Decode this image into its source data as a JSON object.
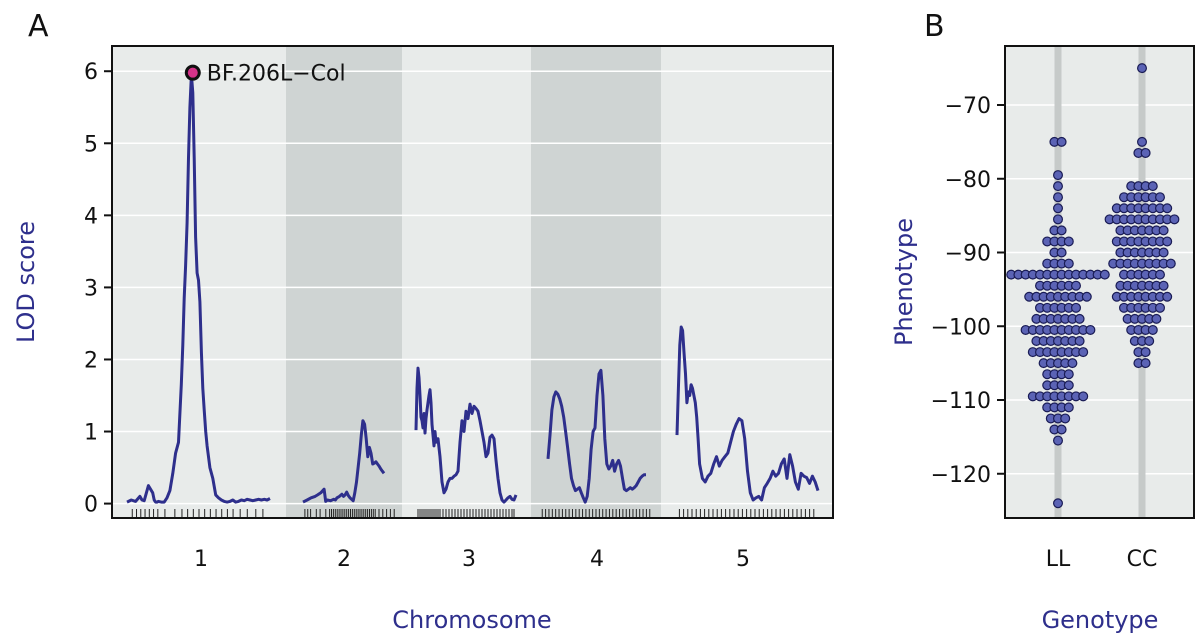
{
  "panel_labels": {
    "a": "A",
    "b": "B"
  },
  "colors": {
    "curve": "#2e2f8c",
    "point_fill": "#5b63b5",
    "point_stroke": "#1a1c55",
    "peak_fill": "#d6338a",
    "bg_light": "#e8ebea",
    "bg_dark": "#cfd4d3",
    "grid": "#ffffff",
    "title": "#2e2f8c"
  },
  "chart_data": [
    {
      "type": "line",
      "panel": "A",
      "xlabel": "Chromosome",
      "ylabel": "LOD score",
      "ylim": [
        -0.2,
        6.35
      ],
      "yticks": [
        0,
        1,
        2,
        3,
        4,
        5,
        6
      ],
      "grid": true,
      "annotation": {
        "label": "BF.206L−Col",
        "chromosome": "1",
        "lod": 5.98
      },
      "chromosomes": [
        {
          "name": "1",
          "shaded": false,
          "x": [
            0,
            3,
            6,
            9,
            10.5,
            12,
            15,
            18,
            19,
            20,
            21,
            22,
            24,
            26,
            28,
            30,
            32,
            34,
            36,
            38,
            39,
            40,
            41,
            42,
            43,
            44,
            45,
            46,
            47,
            48,
            49,
            50,
            51,
            52,
            53,
            54,
            55,
            56,
            58,
            60,
            62,
            64,
            66,
            68,
            70,
            72,
            74,
            76,
            78,
            80,
            82,
            84,
            86,
            88,
            90,
            92,
            94,
            96,
            98,
            100
          ],
          "y": [
            0.02,
            0.05,
            0.03,
            0.1,
            0.05,
            0.04,
            0.25,
            0.15,
            0.05,
            0.02,
            0.02,
            0.03,
            0.02,
            0.02,
            0.08,
            0.18,
            0.42,
            0.7,
            0.85,
            1.65,
            2.2,
            2.85,
            3.3,
            3.9,
            4.8,
            5.5,
            5.95,
            5.7,
            4.8,
            3.7,
            3.2,
            3.1,
            2.8,
            2.1,
            1.6,
            1.3,
            1.0,
            0.8,
            0.5,
            0.35,
            0.12,
            0.08,
            0.05,
            0.03,
            0.02,
            0.03,
            0.05,
            0.02,
            0.03,
            0.05,
            0.04,
            0.06,
            0.05,
            0.04,
            0.05,
            0.06,
            0.05,
            0.06,
            0.05,
            0.07
          ]
        },
        {
          "name": "2",
          "shaded": true,
          "x": [
            0,
            5,
            10,
            15,
            18,
            22,
            26,
            28,
            30,
            34,
            38,
            40,
            42,
            45,
            48,
            50,
            52,
            54,
            56,
            58,
            60,
            62,
            64,
            66,
            68,
            70,
            72,
            74,
            76,
            78,
            80,
            82,
            84,
            86,
            88,
            90,
            92,
            94,
            96,
            98,
            100
          ],
          "y": [
            0.02,
            0.05,
            0.08,
            0.1,
            0.12,
            0.15,
            0.2,
            0.03,
            0.05,
            0.04,
            0.06,
            0.05,
            0.08,
            0.1,
            0.13,
            0.1,
            0.12,
            0.16,
            0.11,
            0.08,
            0.06,
            0.04,
            0.15,
            0.3,
            0.5,
            0.7,
            0.95,
            1.15,
            1.1,
            0.9,
            0.65,
            0.78,
            0.7,
            0.55,
            0.56,
            0.58,
            0.55,
            0.52,
            0.48,
            0.45,
            0.42
          ]
        },
        {
          "name": "3",
          "shaded": false,
          "x": [
            0,
            1,
            2,
            3,
            4,
            5,
            6,
            7,
            8,
            9,
            10,
            11,
            12,
            13,
            14,
            15,
            16,
            17,
            18,
            19,
            20,
            22,
            24,
            26,
            28,
            30,
            32,
            34,
            36,
            38,
            40,
            42,
            44,
            46,
            48,
            50,
            52,
            54,
            56,
            58,
            60,
            62,
            64,
            66,
            68,
            70,
            72,
            74,
            76,
            78,
            80,
            82,
            84,
            86,
            88,
            90,
            92,
            94,
            96,
            98,
            100
          ],
          "y": [
            1.02,
            1.6,
            1.88,
            1.75,
            1.5,
            1.2,
            1.15,
            1.05,
            1.25,
            0.98,
            1.18,
            1.3,
            1.4,
            1.5,
            1.58,
            1.4,
            1.1,
            0.95,
            0.8,
            1.0,
            0.85,
            0.9,
            0.65,
            0.3,
            0.15,
            0.2,
            0.3,
            0.35,
            0.35,
            0.38,
            0.4,
            0.45,
            0.85,
            1.15,
            1.0,
            1.28,
            1.18,
            1.38,
            1.25,
            1.35,
            1.32,
            1.28,
            1.15,
            1.0,
            0.85,
            0.65,
            0.7,
            0.92,
            0.95,
            0.9,
            0.6,
            0.35,
            0.15,
            0.05,
            0.02,
            0.05,
            0.08,
            0.1,
            0.06,
            0.05,
            0.12
          ]
        },
        {
          "name": "4",
          "shaded": true,
          "x": [
            0,
            2,
            4,
            6,
            8,
            10,
            12,
            14,
            16,
            18,
            20,
            22,
            24,
            26,
            28,
            30,
            32,
            34,
            36,
            38,
            40,
            42,
            44,
            46,
            48,
            50,
            52,
            54,
            56,
            58,
            60,
            62,
            64,
            66,
            68,
            70,
            72,
            74,
            76,
            78,
            80,
            82,
            84,
            86,
            88,
            90,
            92,
            94,
            96,
            98,
            100
          ],
          "y": [
            0.62,
            0.95,
            1.3,
            1.48,
            1.55,
            1.52,
            1.45,
            1.35,
            1.2,
            1.0,
            0.78,
            0.55,
            0.35,
            0.25,
            0.18,
            0.2,
            0.22,
            0.15,
            0.08,
            0.02,
            0.1,
            0.35,
            0.75,
            1.0,
            1.05,
            1.5,
            1.8,
            1.85,
            1.5,
            0.9,
            0.55,
            0.48,
            0.52,
            0.6,
            0.45,
            0.55,
            0.6,
            0.52,
            0.35,
            0.2,
            0.18,
            0.2,
            0.22,
            0.2,
            0.22,
            0.25,
            0.3,
            0.35,
            0.38,
            0.4,
            0.4
          ]
        },
        {
          "name": "5",
          "shaded": false,
          "x": [
            0,
            1,
            2,
            3,
            4,
            5,
            6,
            7,
            8,
            9,
            10,
            11,
            12,
            13,
            14,
            15,
            16,
            18,
            20,
            22,
            24,
            26,
            28,
            30,
            32,
            34,
            36,
            38,
            40,
            42,
            44,
            46,
            48,
            50,
            52,
            54,
            56,
            58,
            60,
            62,
            64,
            66,
            68,
            70,
            72,
            74,
            76,
            78,
            80,
            82,
            84,
            86,
            88,
            90,
            92,
            94,
            96,
            98,
            100
          ],
          "y": [
            0.95,
            1.6,
            2.2,
            2.45,
            2.4,
            2.1,
            1.8,
            1.4,
            1.55,
            1.5,
            1.65,
            1.6,
            1.5,
            1.4,
            1.2,
            0.9,
            0.55,
            0.35,
            0.3,
            0.38,
            0.42,
            0.55,
            0.65,
            0.52,
            0.6,
            0.65,
            0.7,
            0.85,
            1.0,
            1.1,
            1.18,
            1.15,
            0.9,
            0.45,
            0.15,
            0.05,
            0.08,
            0.1,
            0.05,
            0.22,
            0.28,
            0.35,
            0.45,
            0.38,
            0.42,
            0.55,
            0.62,
            0.35,
            0.68,
            0.52,
            0.3,
            0.2,
            0.42,
            0.38,
            0.36,
            0.28,
            0.38,
            0.3,
            0.18
          ]
        }
      ],
      "markers": [
        [
          3,
          6,
          9,
          12,
          15,
          18,
          21,
          26,
          33,
          38,
          42,
          46,
          50,
          54,
          58,
          62,
          66,
          70,
          74,
          79,
          84,
          90,
          95
        ],
        [
          2,
          5,
          8,
          14,
          18,
          24,
          28,
          30,
          32,
          34,
          36,
          38,
          40,
          42,
          44,
          46,
          48,
          50,
          52,
          54,
          56,
          58,
          60,
          62,
          64,
          66,
          68,
          70,
          72,
          74,
          76,
          80,
          84,
          88,
          92,
          96
        ],
        [
          2,
          4,
          6,
          8,
          10,
          12,
          14,
          16,
          18,
          20,
          22,
          24,
          27,
          30,
          33,
          36,
          39,
          42,
          45,
          48,
          51,
          54,
          57,
          60,
          63,
          66,
          69,
          72,
          75,
          78,
          81,
          84,
          87,
          90,
          93,
          96,
          98
        ],
        [
          2,
          5,
          8,
          11,
          14,
          17,
          20,
          23,
          26,
          29,
          32,
          35,
          38,
          41,
          44,
          47,
          50,
          53,
          56,
          59,
          62,
          65,
          68,
          71,
          74,
          77,
          80,
          83,
          86,
          89,
          92,
          95,
          98
        ],
        [
          1,
          4,
          7,
          10,
          13,
          16,
          19,
          22,
          25,
          28,
          31,
          34,
          37,
          40,
          43,
          46,
          49,
          52,
          55,
          58,
          61,
          64,
          67,
          70,
          73,
          76,
          79,
          82,
          85,
          88,
          91,
          94,
          97
        ]
      ]
    },
    {
      "type": "scatter",
      "panel": "B",
      "xlabel": "Genotype",
      "ylabel": "Phenotype",
      "categories": [
        "LL",
        "CC"
      ],
      "ylim": [
        -126,
        -62
      ],
      "yticks": [
        -120,
        -110,
        -100,
        -90,
        -80,
        -70
      ],
      "yticklabels": [
        "−120",
        "−110",
        "−100",
        "−90",
        "−80",
        "−70"
      ],
      "series": [
        {
          "category": "LL",
          "rows": [
            {
              "y": -75,
              "n": 2
            },
            {
              "y": -79.5,
              "n": 1
            },
            {
              "y": -81,
              "n": 1
            },
            {
              "y": -82.5,
              "n": 1
            },
            {
              "y": -84,
              "n": 1
            },
            {
              "y": -85.5,
              "n": 1
            },
            {
              "y": -87,
              "n": 2
            },
            {
              "y": -88.5,
              "n": 4
            },
            {
              "y": -90,
              "n": 2
            },
            {
              "y": -91.5,
              "n": 4
            },
            {
              "y": -93,
              "n": 14
            },
            {
              "y": -94.5,
              "n": 6
            },
            {
              "y": -96,
              "n": 9
            },
            {
              "y": -97.5,
              "n": 6
            },
            {
              "y": -99,
              "n": 7
            },
            {
              "y": -100.5,
              "n": 10
            },
            {
              "y": -102,
              "n": 7
            },
            {
              "y": -103.5,
              "n": 8
            },
            {
              "y": -105,
              "n": 5
            },
            {
              "y": -106.5,
              "n": 4
            },
            {
              "y": -108,
              "n": 4
            },
            {
              "y": -109.5,
              "n": 8
            },
            {
              "y": -111,
              "n": 4
            },
            {
              "y": -112.5,
              "n": 3
            },
            {
              "y": -114,
              "n": 2
            },
            {
              "y": -115.5,
              "n": 1
            },
            {
              "y": -124,
              "n": 1
            }
          ]
        },
        {
          "category": "CC",
          "rows": [
            {
              "y": -65,
              "n": 1
            },
            {
              "y": -75,
              "n": 1
            },
            {
              "y": -76.5,
              "n": 2
            },
            {
              "y": -81,
              "n": 4
            },
            {
              "y": -82.5,
              "n": 6
            },
            {
              "y": -84,
              "n": 8
            },
            {
              "y": -85.5,
              "n": 10
            },
            {
              "y": -87,
              "n": 7
            },
            {
              "y": -88.5,
              "n": 8
            },
            {
              "y": -90,
              "n": 7
            },
            {
              "y": -91.5,
              "n": 9
            },
            {
              "y": -93,
              "n": 6
            },
            {
              "y": -94.5,
              "n": 7
            },
            {
              "y": -96,
              "n": 8
            },
            {
              "y": -97.5,
              "n": 6
            },
            {
              "y": -99,
              "n": 5
            },
            {
              "y": -100.5,
              "n": 4
            },
            {
              "y": -102,
              "n": 3
            },
            {
              "y": -103.5,
              "n": 2
            },
            {
              "y": -105,
              "n": 2
            }
          ]
        }
      ]
    }
  ]
}
